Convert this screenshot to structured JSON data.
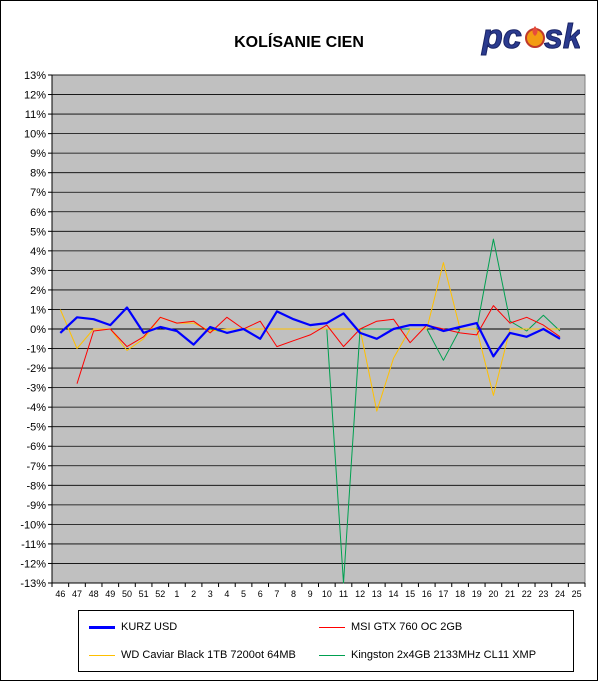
{
  "logo_text": "pcusk",
  "colors": {
    "plot_bg": "#c0c0c0",
    "grid": "#000000"
  },
  "chart_data": {
    "type": "line",
    "title": "KOLÍSANIE CIEN",
    "xlabel": "",
    "ylabel": "",
    "x": [
      "46",
      "47",
      "48",
      "49",
      "50",
      "51",
      "52",
      "1",
      "2",
      "3",
      "4",
      "5",
      "6",
      "7",
      "8",
      "9",
      "10",
      "11",
      "12",
      "13",
      "14",
      "15",
      "16",
      "17",
      "18",
      "19",
      "20",
      "21",
      "22",
      "23",
      "24",
      "25"
    ],
    "y_ticks": [
      "13%",
      "12%",
      "11%",
      "10%",
      "9%",
      "8%",
      "7%",
      "6%",
      "5%",
      "4%",
      "3%",
      "2%",
      "1%",
      "0%",
      "-1%",
      "-2%",
      "-3%",
      "-4%",
      "-5%",
      "-6%",
      "-7%",
      "-8%",
      "-9%",
      "-10%",
      "-11%",
      "-12%",
      "-13%"
    ],
    "ylim": [
      -13,
      13
    ],
    "grid": true,
    "legend_position": "bottom",
    "series": [
      {
        "name": "KURZ USD",
        "color": "#0000ff",
        "width": 2.2,
        "values": [
          -0.2,
          0.6,
          0.5,
          0.2,
          1.1,
          -0.2,
          0.1,
          -0.1,
          -0.8,
          0.1,
          -0.2,
          0.0,
          -0.5,
          0.9,
          0.5,
          0.2,
          0.3,
          0.8,
          -0.2,
          -0.5,
          0.0,
          0.2,
          0.2,
          -0.1,
          0.1,
          0.3,
          -1.4,
          -0.2,
          -0.4,
          0.0,
          -0.5,
          null
        ]
      },
      {
        "name": "MSI GTX 760 OC 2GB",
        "color": "#ff0000",
        "width": 1,
        "values": [
          null,
          -2.8,
          -0.1,
          0.0,
          -0.9,
          -0.4,
          0.6,
          0.3,
          0.4,
          -0.2,
          0.6,
          0.0,
          0.4,
          -0.9,
          -0.6,
          -0.3,
          0.2,
          -0.9,
          0.0,
          0.4,
          0.5,
          -0.7,
          0.2,
          0.0,
          -0.2,
          -0.3,
          1.2,
          0.3,
          0.6,
          0.2,
          -0.4,
          null
        ]
      },
      {
        "name": "WD Caviar Black 1TB 7200ot 64MB",
        "color": "#ffc000",
        "width": 1,
        "values": [
          1.0,
          -1.0,
          0.0,
          0.0,
          -1.1,
          -0.5,
          0.6,
          0.3,
          0.3,
          -0.1,
          0.0,
          0.0,
          0.0,
          0.0,
          0.0,
          0.0,
          0.0,
          0.0,
          0.0,
          -4.2,
          -1.5,
          0.0,
          0.0,
          3.4,
          0.0,
          0.0,
          -3.4,
          0.0,
          0.0,
          0.0,
          0.0,
          null
        ]
      },
      {
        "name": "Kingston 2x4GB 2133MHz CL11 XMP",
        "color": "#00a050",
        "width": 1,
        "values": [
          null,
          null,
          null,
          null,
          null,
          null,
          null,
          null,
          null,
          0.0,
          -0.2,
          0.0,
          0.0,
          0.0,
          0.0,
          0.0,
          0.0,
          -13.0,
          0.0,
          0.0,
          0.0,
          0.0,
          0.0,
          -1.6,
          0.0,
          0.0,
          4.6,
          0.4,
          -0.1,
          0.7,
          -0.1,
          null
        ]
      }
    ]
  }
}
